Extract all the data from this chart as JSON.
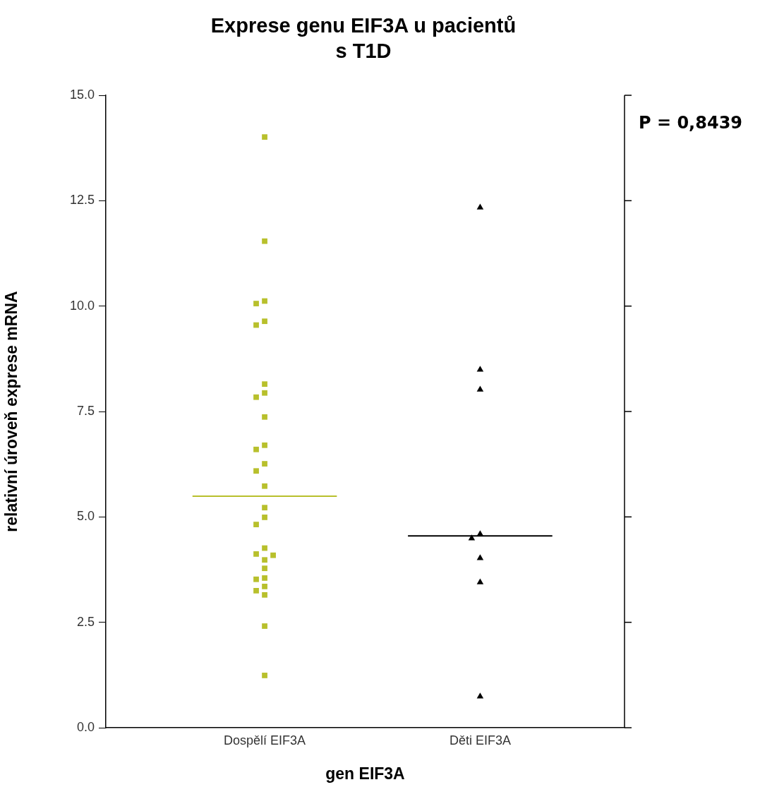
{
  "chart_data": {
    "type": "scatter",
    "title": "Exprese genu EIF3A u pacientů s T1D",
    "xlabel": "gen EIF3A",
    "ylabel": "relativní úroveň exprese mRNA",
    "categories": [
      "Dospělí EIF3A",
      "Děti EIF3A"
    ],
    "series": [
      {
        "type": "scatter",
        "color": "#b8c02c",
        "marker": "square",
        "x": [
          "Dospělí EIF3A",
          "Dospělí EIF3A",
          "Dospělí EIF3A",
          "Dospělí EIF3A",
          "Dospělí EIF3A",
          "Dospělí EIF3A",
          "Dospělí EIF3A",
          "Dospělí EIF3A",
          "Dospělí EIF3A",
          "Dospělí EIF3A",
          "Dospělí EIF3A",
          "Dospělí EIF3A",
          "Dospělí EIF3A",
          "Dospělí EIF3A",
          "Dospělí EIF3A",
          "Dospělí EIF3A",
          "Dospělí EIF3A",
          "Dospělí EIF3A",
          "Dospělí EIF3A",
          "Dospělí EIF3A",
          "Dospělí EIF3A",
          "Dospělí EIF3A",
          "Dospělí EIF3A",
          "Dospělí EIF3A",
          "Dospělí EIF3A",
          "Dospělí EIF3A",
          "Dospělí EIF3A",
          "Dospělí EIF3A",
          "Dospělí EIF3A",
          "Dospělí EIF3A"
        ],
        "values": [
          14.01,
          11.54,
          10.06,
          10.12,
          9.64,
          9.55,
          8.15,
          7.94,
          7.84,
          7.37,
          6.7,
          6.6,
          6.26,
          6.09,
          5.73,
          5.22,
          4.99,
          4.82,
          4.26,
          4.09,
          4.12,
          3.98,
          3.78,
          3.55,
          3.52,
          3.35,
          3.25,
          3.15,
          2.41,
          1.24
        ]
      },
      {
        "type": "scatter",
        "color": "#000000",
        "marker": "triangle",
        "x": [
          "Děti EIF3A",
          "Děti EIF3A",
          "Děti EIF3A",
          "Děti EIF3A",
          "Děti EIF3A",
          "Děti EIF3A",
          "Děti EIF3A",
          "Děti EIF3A"
        ],
        "values": [
          12.34,
          8.49,
          8.02,
          4.59,
          4.49,
          4.02,
          3.45,
          0.74
        ]
      }
    ],
    "ref_lines": [
      {
        "axis": "y",
        "value": 5.49,
        "color": "#b8c02c"
      },
      {
        "axis": "y",
        "value": 4.55,
        "color": "#000000"
      }
    ],
    "ylim": [
      0,
      15
    ],
    "yticks": [
      {
        "value": 0,
        "label": "0.0"
      },
      {
        "value": 2.5,
        "label": "2.5"
      },
      {
        "value": 5,
        "label": "5.0"
      },
      {
        "value": 7.5,
        "label": "7.5"
      },
      {
        "value": 10,
        "label": "10.0"
      },
      {
        "value": 12.5,
        "label": "12.5"
      },
      {
        "value": 15,
        "label": "15.0"
      }
    ],
    "annotations": [
      "P = 0,8439"
    ],
    "grid": false,
    "legend": false
  }
}
